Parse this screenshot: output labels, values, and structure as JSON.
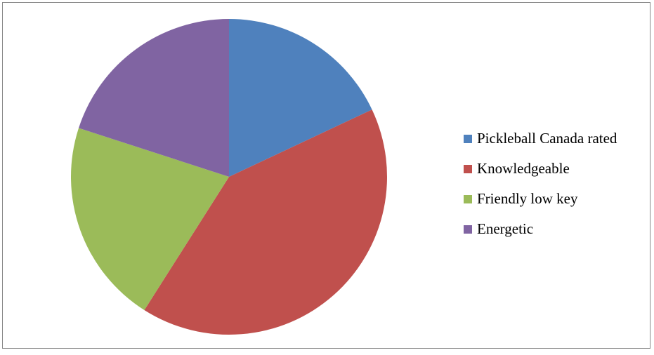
{
  "chart_data": {
    "type": "pie",
    "title": "",
    "categories": [
      "Pickleball Canada rated",
      "Knowledgeable",
      "Friendly low key",
      "Energetic"
    ],
    "values": [
      18,
      41,
      21,
      20
    ],
    "colors": [
      "#4F81BD",
      "#C0504D",
      "#9BBB59",
      "#8064A2"
    ],
    "start_angle_deg": 0,
    "direction": "clockwise",
    "legend": {
      "position": "right",
      "items": [
        {
          "label": "Pickleball Canada rated",
          "color": "#4F81BD"
        },
        {
          "label": "Knowledgeable",
          "color": "#C0504D"
        },
        {
          "label": "Friendly low key",
          "color": "#9BBB59"
        },
        {
          "label": "Energetic",
          "color": "#8064A2"
        }
      ]
    }
  }
}
